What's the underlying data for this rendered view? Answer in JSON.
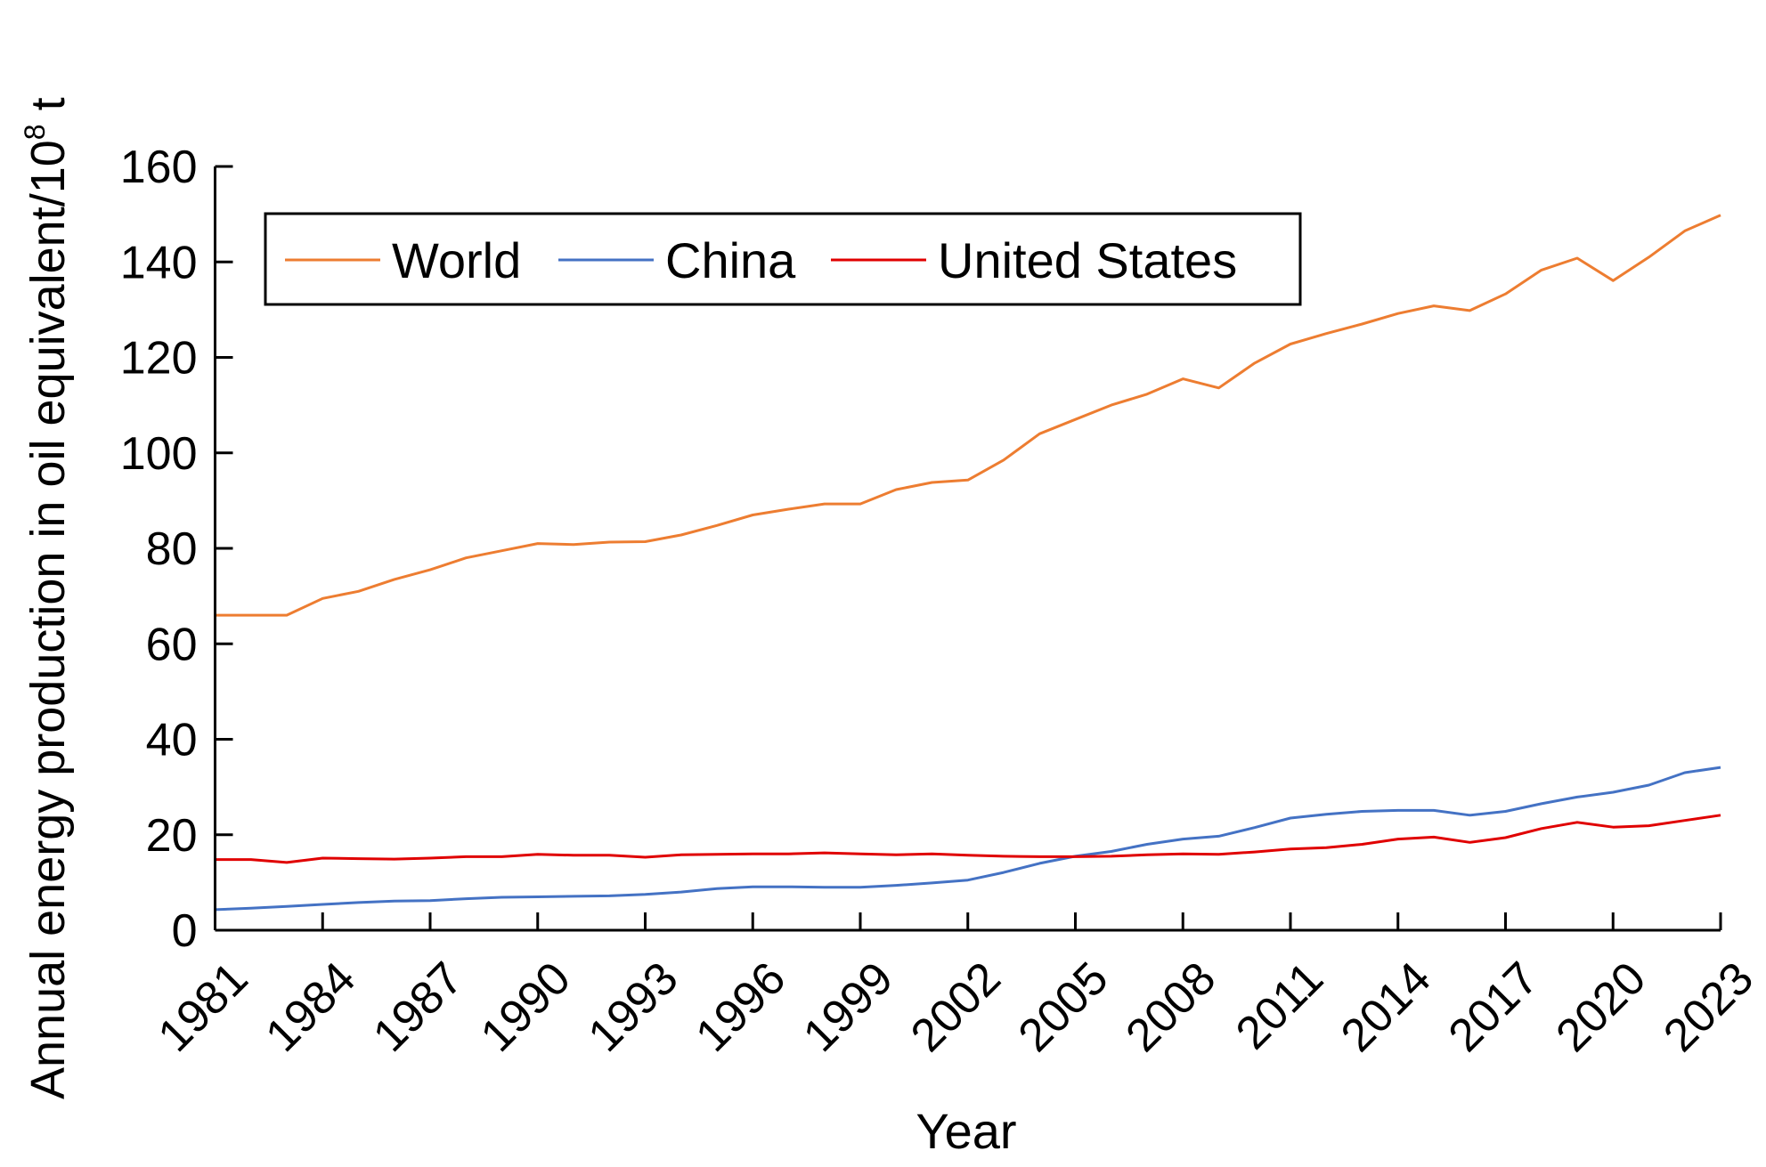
{
  "chart_data": {
    "type": "line",
    "title": "",
    "xlabel": "Year",
    "ylabel": "Annual energy production in oil equivalent/10",
    "ylabel_superscript": "8",
    "ylabel_suffix": " t",
    "ylim": [
      0,
      160
    ],
    "yticks": [
      0,
      20,
      40,
      60,
      80,
      100,
      120,
      140,
      160
    ],
    "xlim": [
      1981,
      2023
    ],
    "xticks": [
      1981,
      1984,
      1987,
      1990,
      1993,
      1996,
      1999,
      2002,
      2005,
      2008,
      2011,
      2014,
      2017,
      2020,
      2023
    ],
    "grid": false,
    "legend_position": "top-left",
    "x": [
      1981,
      1982,
      1983,
      1984,
      1985,
      1986,
      1987,
      1988,
      1989,
      1990,
      1991,
      1992,
      1993,
      1994,
      1995,
      1996,
      1997,
      1998,
      1999,
      2000,
      2001,
      2002,
      2003,
      2004,
      2005,
      2006,
      2007,
      2008,
      2009,
      2010,
      2011,
      2012,
      2013,
      2014,
      2015,
      2016,
      2017,
      2018,
      2019,
      2020,
      2021,
      2022,
      2023
    ],
    "series": [
      {
        "name": "World",
        "color": "#ED7D31",
        "values": [
          66,
          66,
          66,
          69.5,
          71,
          73.5,
          75.5,
          78,
          79.5,
          81,
          80.8,
          81.3,
          81.4,
          82.8,
          84.8,
          87,
          88.2,
          89.3,
          89.3,
          92.3,
          93.8,
          94.3,
          98.5,
          104,
          107,
          110,
          112.3,
          115.5,
          113.6,
          118.8,
          122.8,
          125,
          127,
          129.2,
          130.8,
          129.8,
          133.3,
          138.3,
          140.8,
          136.1,
          141,
          146.5,
          149.8
        ]
      },
      {
        "name": "China",
        "color": "#4472C4",
        "values": [
          4.3,
          4.6,
          5,
          5.4,
          5.8,
          6.1,
          6.2,
          6.6,
          6.9,
          7.0,
          7.1,
          7.2,
          7.5,
          8.0,
          8.7,
          9.1,
          9.1,
          9.0,
          9.0,
          9.4,
          9.9,
          10.5,
          12.1,
          14,
          15.5,
          16.5,
          18,
          19.1,
          19.7,
          21.5,
          23.5,
          24.3,
          24.9,
          25.1,
          25.1,
          24.1,
          24.9,
          26.5,
          27.9,
          28.9,
          30.4,
          33,
          34.1
        ]
      },
      {
        "name": "United States",
        "color": "#E00000",
        "values": [
          14.8,
          14.8,
          14.2,
          15.1,
          15.0,
          14.9,
          15.1,
          15.4,
          15.4,
          15.9,
          15.7,
          15.7,
          15.3,
          15.8,
          15.9,
          16.0,
          16.0,
          16.2,
          16.0,
          15.8,
          16.0,
          15.7,
          15.5,
          15.4,
          15.4,
          15.5,
          15.8,
          16.0,
          15.9,
          16.4,
          17,
          17.3,
          18,
          19.1,
          19.5,
          18.4,
          19.4,
          21.3,
          22.6,
          21.6,
          21.9,
          23,
          24.1
        ]
      }
    ]
  }
}
